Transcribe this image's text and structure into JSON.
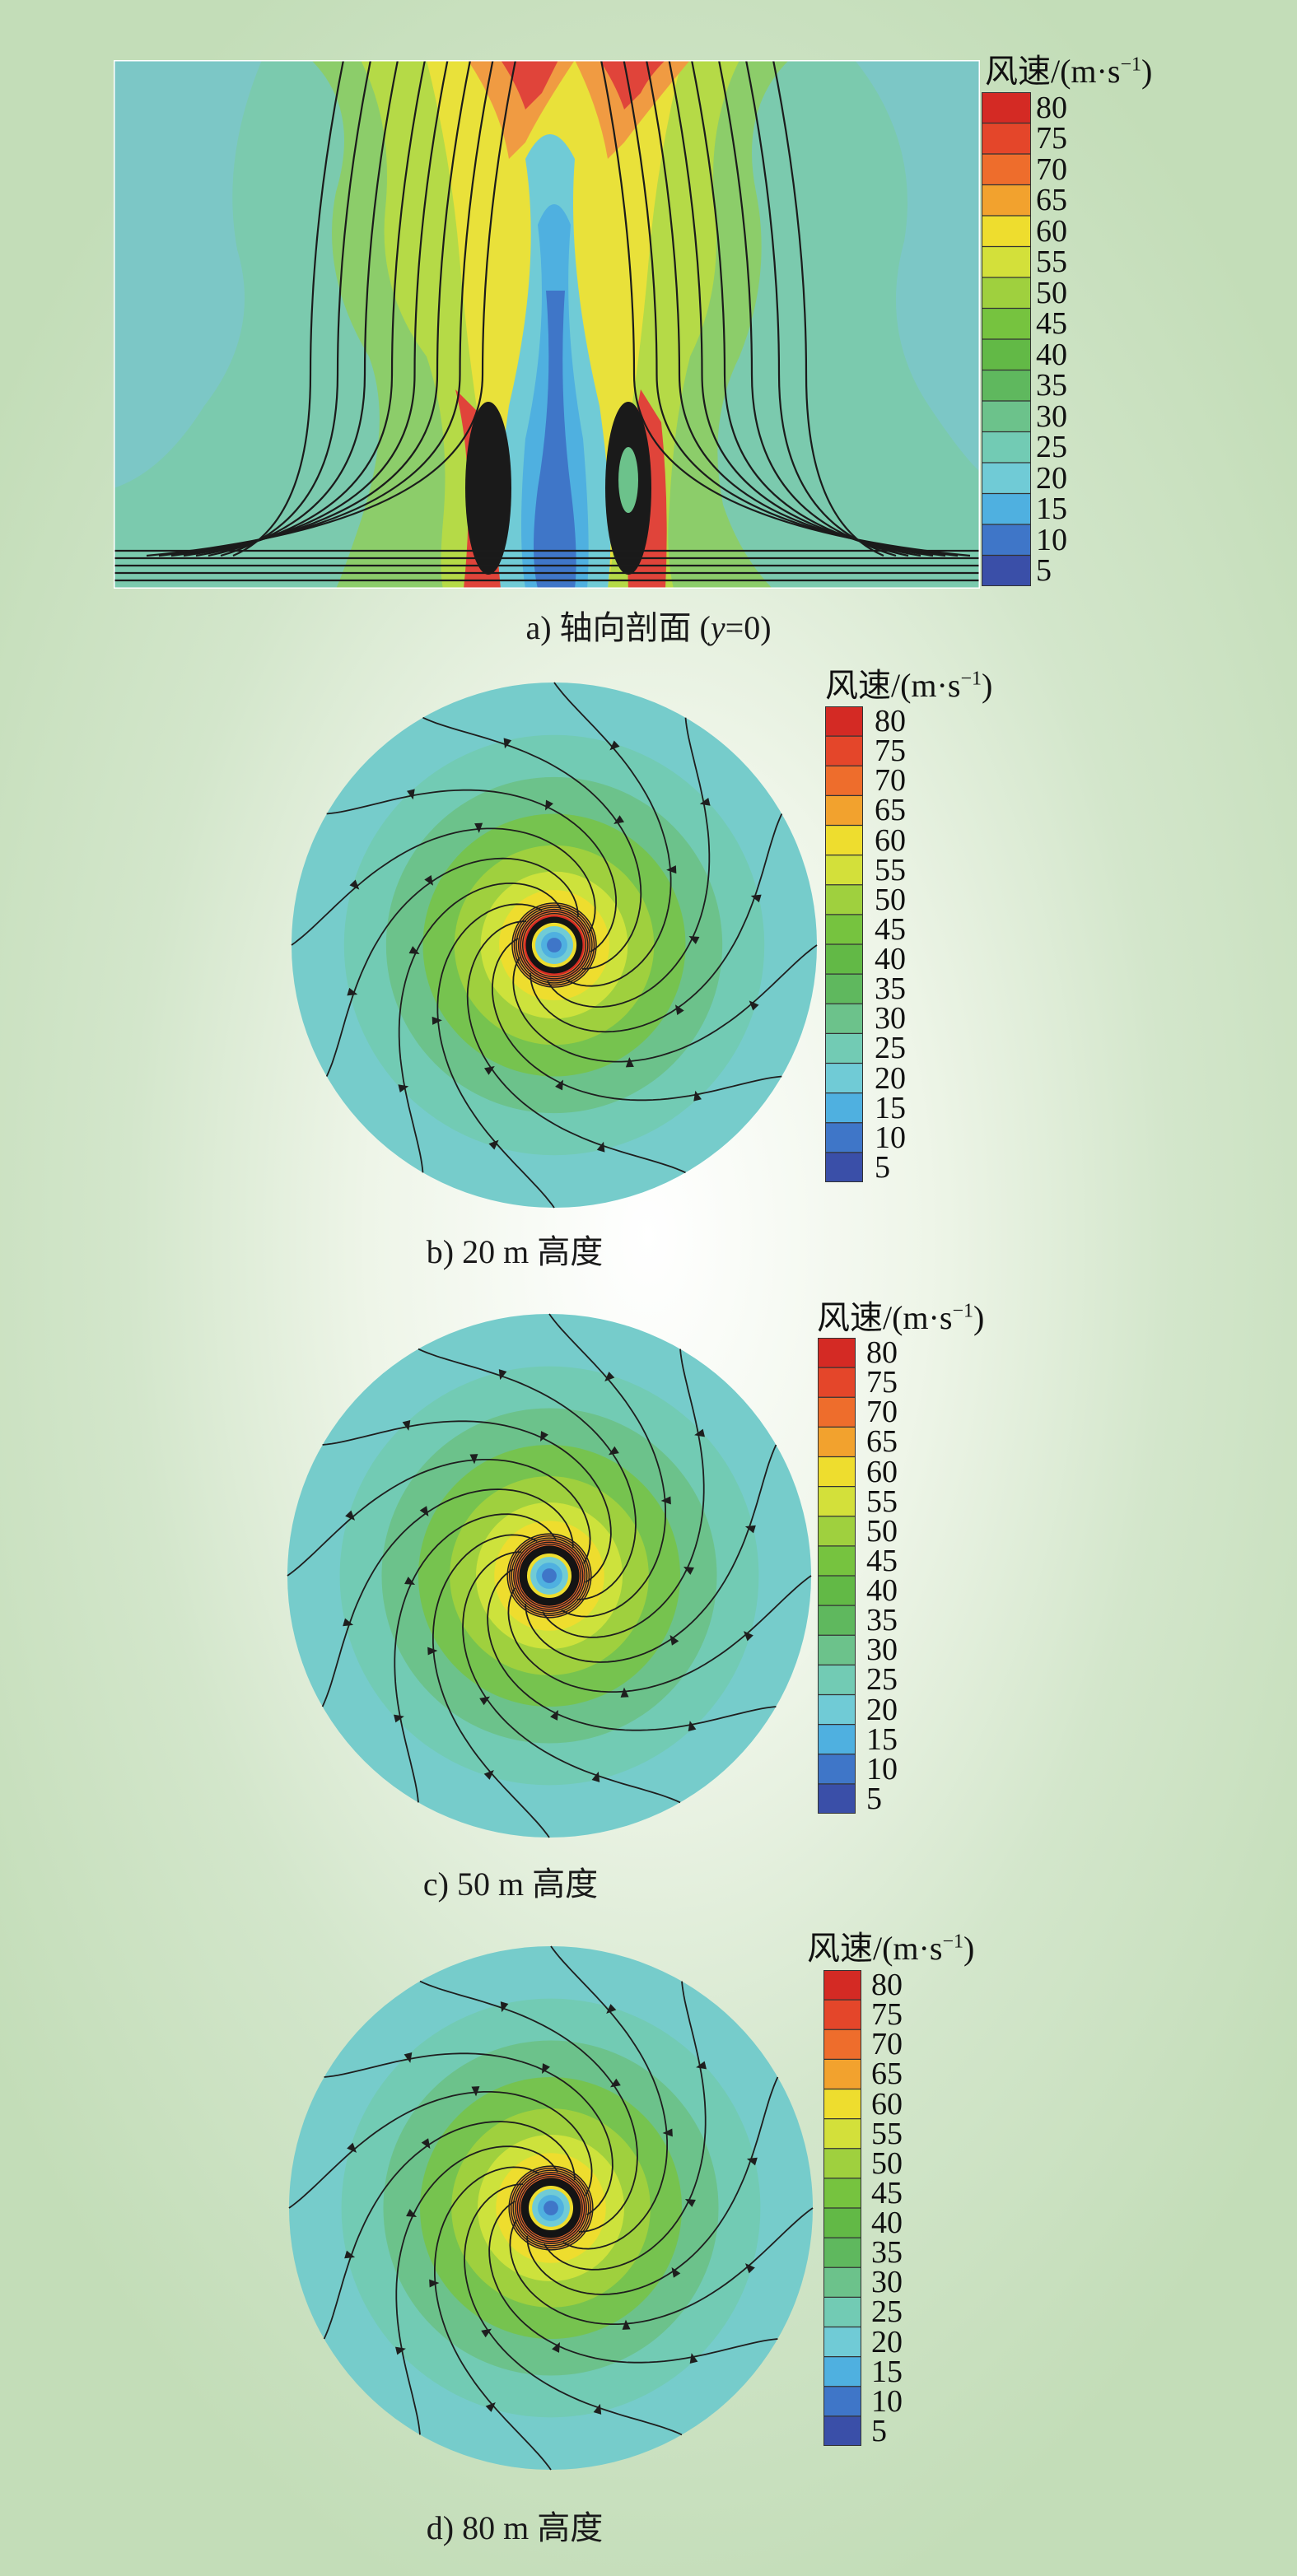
{
  "colorbar": {
    "title_prefix": "风速/(m·s",
    "title_exponent": "−1",
    "title_suffix": ")",
    "ticks": [
      "80",
      "75",
      "70",
      "65",
      "60",
      "55",
      "50",
      "45",
      "40",
      "35",
      "30",
      "25",
      "20",
      "15",
      "10",
      "5"
    ],
    "colors": [
      "#d42a24",
      "#e4462a",
      "#ee6d2c",
      "#f2a22e",
      "#eedd2e",
      "#d3e03a",
      "#9fd03e",
      "#76c33f",
      "#62b946",
      "#5fb85e",
      "#6cc28b",
      "#72cbb4",
      "#70cbd6",
      "#4fb0e0",
      "#3f76c8",
      "#3a4fa8"
    ]
  },
  "panels": [
    {
      "id": "a",
      "caption_prefix": "a) 轴向剖面 (",
      "caption_var": "y",
      "caption_suffix": "=0)"
    },
    {
      "id": "b",
      "caption": "b) 20 m 高度"
    },
    {
      "id": "c",
      "caption": "c) 50 m 高度"
    },
    {
      "id": "d",
      "caption": "d) 80 m 高度"
    }
  ]
}
